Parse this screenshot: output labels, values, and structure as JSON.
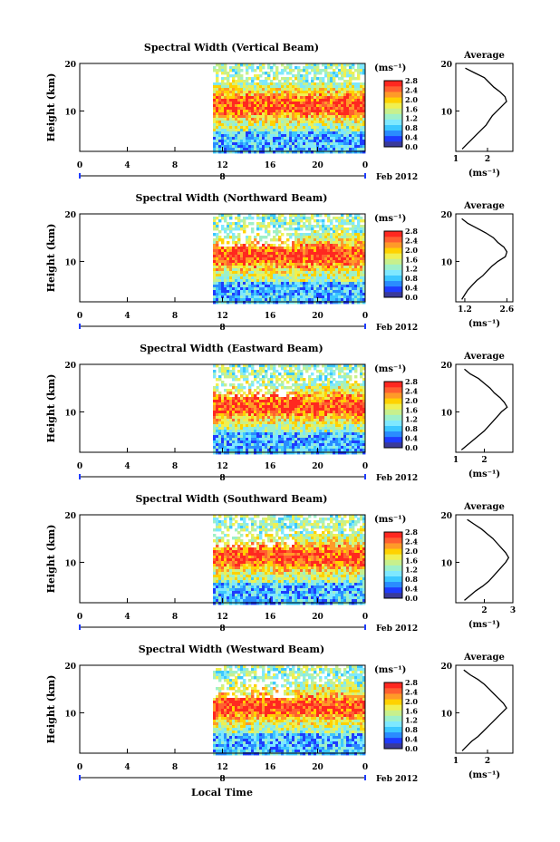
{
  "figure": {
    "colorbar_unit_label": "(ms⁻¹)",
    "average_title": "Average",
    "date_label": "Feb 2012",
    "xlabel": "Local Time",
    "colors": {
      "colorbar": [
        "#3a3a9a",
        "#1e3cff",
        "#2a8cff",
        "#3cc8ff",
        "#7ee8ff",
        "#9ef0c8",
        "#c8f08c",
        "#f0f050",
        "#ffd200",
        "#ff9a28",
        "#ff6030",
        "#ff2820"
      ],
      "blank": "#ffffff"
    }
  },
  "chart_data": [
    {
      "type": "heatmap",
      "title": "Spectral Width (Vertical Beam)",
      "xlabel": "",
      "ylabel": "Height (km)",
      "x_ticks": [
        "0",
        "4",
        "8",
        "12",
        "16",
        "20",
        "0"
      ],
      "y_ticks": [
        "20",
        "10"
      ],
      "xlim": [
        0,
        24
      ],
      "ylim": [
        1.5,
        20
      ],
      "data_start_hour": 11.2,
      "day_marker": "8",
      "colorbar": {
        "label": "(ms⁻¹)",
        "ticks": [
          "2.8",
          "2.4",
          "2.0",
          "1.6",
          "1.2",
          "0.8",
          "0.4",
          "0.0"
        ],
        "range": [
          0.0,
          2.8
        ]
      },
      "profile": {
        "title": "Average",
        "xlabel": "(ms⁻¹)",
        "x_ticks": [
          "1",
          "2"
        ],
        "xlim": [
          1.0,
          2.8
        ],
        "y_ticks": [
          "20",
          "10"
        ],
        "heights": [
          2,
          3,
          4,
          5,
          6,
          7,
          8,
          9,
          10,
          11,
          12,
          13,
          14,
          15,
          16,
          17,
          18,
          19
        ],
        "values": [
          1.2,
          1.35,
          1.5,
          1.65,
          1.8,
          1.95,
          2.05,
          2.15,
          2.3,
          2.45,
          2.6,
          2.55,
          2.4,
          2.2,
          2.05,
          1.9,
          1.6,
          1.3
        ]
      }
    },
    {
      "type": "heatmap",
      "title": "Spectral Width (Northward Beam)",
      "xlabel": "",
      "ylabel": "Height (km)",
      "x_ticks": [
        "0",
        "4",
        "8",
        "12",
        "16",
        "20",
        "0"
      ],
      "y_ticks": [
        "20",
        "10"
      ],
      "xlim": [
        0,
        24
      ],
      "ylim": [
        1.5,
        20
      ],
      "data_start_hour": 11.2,
      "day_marker": "8",
      "colorbar": {
        "label": "(ms⁻¹)",
        "ticks": [
          "2.8",
          "2.4",
          "2.0",
          "1.6",
          "1.2",
          "0.8",
          "0.4",
          "0.0"
        ],
        "range": [
          0.0,
          2.8
        ]
      },
      "profile": {
        "title": "Average",
        "xlabel": "(ms⁻¹)",
        "x_ticks": [
          "1.2",
          "2.6"
        ],
        "xlim": [
          0.9,
          2.8
        ],
        "y_ticks": [
          "20",
          "10"
        ],
        "heights": [
          2,
          3,
          4,
          5,
          6,
          7,
          8,
          9,
          10,
          11,
          12,
          13,
          14,
          15,
          16,
          17,
          18,
          19
        ],
        "values": [
          1.1,
          1.2,
          1.3,
          1.45,
          1.6,
          1.8,
          1.95,
          2.1,
          2.3,
          2.55,
          2.6,
          2.5,
          2.3,
          2.15,
          1.9,
          1.6,
          1.3,
          1.1
        ]
      }
    },
    {
      "type": "heatmap",
      "title": "Spectral Width (Eastward Beam)",
      "xlabel": "",
      "ylabel": "Height (km)",
      "x_ticks": [
        "0",
        "4",
        "8",
        "12",
        "16",
        "20",
        "0"
      ],
      "y_ticks": [
        "20",
        "10"
      ],
      "xlim": [
        0,
        24
      ],
      "ylim": [
        1.5,
        20
      ],
      "data_start_hour": 11.2,
      "day_marker": "8",
      "colorbar": {
        "label": "(ms⁻¹)",
        "ticks": [
          "2.8",
          "2.4",
          "2.0",
          "1.6",
          "1.2",
          "0.8",
          "0.4",
          "0.0"
        ],
        "range": [
          0.0,
          2.8
        ]
      },
      "profile": {
        "title": "Average",
        "xlabel": "(ms⁻¹)",
        "x_ticks": [
          "1",
          "2"
        ],
        "xlim": [
          1.0,
          3.0
        ],
        "y_ticks": [
          "20",
          "10"
        ],
        "heights": [
          2,
          3,
          4,
          5,
          6,
          7,
          8,
          9,
          10,
          11,
          12,
          13,
          14,
          15,
          16,
          17,
          18,
          19
        ],
        "values": [
          1.2,
          1.4,
          1.6,
          1.8,
          2.0,
          2.15,
          2.3,
          2.45,
          2.6,
          2.8,
          2.7,
          2.55,
          2.35,
          2.2,
          2.0,
          1.8,
          1.5,
          1.3
        ]
      }
    },
    {
      "type": "heatmap",
      "title": "Spectral Width (Southward Beam)",
      "xlabel": "",
      "ylabel": "Height (km)",
      "x_ticks": [
        "0",
        "4",
        "8",
        "12",
        "16",
        "20",
        "0"
      ],
      "y_ticks": [
        "20",
        "10"
      ],
      "xlim": [
        0,
        24
      ],
      "ylim": [
        1.5,
        20
      ],
      "data_start_hour": 11.2,
      "day_marker": "8",
      "colorbar": {
        "label": "(ms⁻¹)",
        "ticks": [
          "2.8",
          "2.4",
          "2.0",
          "1.6",
          "1.2",
          "0.8",
          "0.4",
          "0.0"
        ],
        "range": [
          0.0,
          2.8
        ]
      },
      "profile": {
        "title": "Average",
        "xlabel": "(ms⁻¹)",
        "x_ticks": [
          "2",
          "3"
        ],
        "xlim": [
          1.0,
          3.0
        ],
        "y_ticks": [
          "20",
          "10"
        ],
        "heights": [
          2,
          3,
          4,
          5,
          6,
          7,
          8,
          9,
          10,
          11,
          12,
          13,
          14,
          15,
          16,
          17,
          18,
          19
        ],
        "values": [
          1.3,
          1.5,
          1.7,
          1.95,
          2.15,
          2.3,
          2.45,
          2.6,
          2.75,
          2.85,
          2.75,
          2.6,
          2.45,
          2.3,
          2.1,
          1.9,
          1.65,
          1.4
        ]
      }
    },
    {
      "type": "heatmap",
      "title": "Spectral Width (Westward Beam)",
      "xlabel": "Local Time",
      "ylabel": "Height (km)",
      "x_ticks": [
        "0",
        "4",
        "8",
        "12",
        "16",
        "20",
        "0"
      ],
      "y_ticks": [
        "20",
        "10"
      ],
      "xlim": [
        0,
        24
      ],
      "ylim": [
        1.5,
        20
      ],
      "data_start_hour": 11.2,
      "day_marker": "8",
      "colorbar": {
        "label": "(ms⁻¹)",
        "ticks": [
          "2.8",
          "2.4",
          "2.0",
          "1.6",
          "1.2",
          "0.8",
          "0.4",
          "0.0"
        ],
        "range": [
          0.0,
          2.8
        ]
      },
      "profile": {
        "title": "Average",
        "xlabel": "(ms⁻¹)",
        "x_ticks": [
          "1",
          "2"
        ],
        "xlim": [
          1.0,
          2.8
        ],
        "y_ticks": [
          "20",
          "10"
        ],
        "heights": [
          2,
          3,
          4,
          5,
          6,
          7,
          8,
          9,
          10,
          11,
          12,
          13,
          14,
          15,
          16,
          17,
          18,
          19
        ],
        "values": [
          1.2,
          1.35,
          1.5,
          1.7,
          1.85,
          2.0,
          2.15,
          2.3,
          2.45,
          2.6,
          2.5,
          2.35,
          2.2,
          2.05,
          1.9,
          1.7,
          1.45,
          1.25
        ]
      }
    }
  ]
}
